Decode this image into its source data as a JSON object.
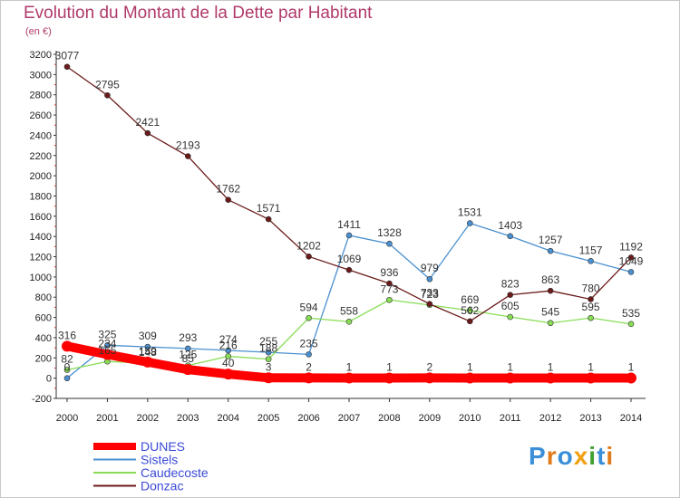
{
  "chart_data": {
    "type": "line",
    "title": "Evolution du Montant de la Dette par Habitant",
    "subtitle": "(en €)",
    "x": [
      "2000",
      "2001",
      "2002",
      "2003",
      "2004",
      "2005",
      "2006",
      "2007",
      "2008",
      "2009",
      "2010",
      "2011",
      "2012",
      "2013",
      "2014"
    ],
    "y_ticks": [
      "-200",
      "0",
      "200",
      "400",
      "600",
      "800",
      "1000",
      "1200",
      "1400",
      "1600",
      "1800",
      "2000",
      "2200",
      "2400",
      "2600",
      "2800",
      "3000",
      "3200"
    ],
    "ylim": [
      -200,
      3200
    ],
    "grid": false,
    "legend_position": "bottom-left",
    "series": [
      {
        "name": "DUNES",
        "color": "#ff0000",
        "values": [
          316,
          234,
          159,
          85,
          40,
          3,
          2,
          1,
          1,
          2,
          1,
          1,
          1,
          1,
          1
        ],
        "labels": [
          "316",
          "234",
          "159",
          "85",
          "40",
          "3",
          "2",
          "1",
          "1",
          "2",
          "1",
          "1",
          "1",
          "1",
          "1"
        ]
      },
      {
        "name": "Sistels",
        "color": "#4a90d0",
        "values": [
          0,
          325,
          309,
          293,
          274,
          255,
          235,
          1411,
          1328,
          979,
          1531,
          1403,
          1257,
          1157,
          1049
        ],
        "labels": [
          "0",
          "325",
          "309",
          "293",
          "274",
          "255",
          "235",
          "1411",
          "1328",
          "979",
          "1531",
          "1403",
          "1257",
          "1157",
          "1049"
        ]
      },
      {
        "name": "Caudecoste",
        "color": "#88dd55",
        "values": [
          82,
          165,
          148,
          125,
          216,
          188,
          594,
          558,
          773,
          723,
          669,
          605,
          545,
          595,
          535
        ],
        "labels": [
          "82",
          "165",
          "148",
          "125",
          "216",
          "188",
          "594",
          "558",
          "773",
          "723",
          "669",
          "605",
          "545",
          "595",
          "535"
        ]
      },
      {
        "name": "Donzac",
        "color": "#6b1a1a",
        "values": [
          3077,
          2795,
          2421,
          2193,
          1762,
          1571,
          1202,
          1069,
          936,
          733,
          562,
          823,
          863,
          780,
          1192
        ],
        "labels": [
          "3077",
          "2795",
          "2421",
          "2193",
          "1762",
          "1571",
          "1202",
          "1069",
          "936",
          "733",
          "562",
          "823",
          "863",
          "780",
          "1192"
        ]
      }
    ]
  },
  "logo": {
    "letters": [
      "P",
      "r",
      "o",
      "x",
      "i",
      "t",
      "i"
    ],
    "colors": [
      "#3a8fd8",
      "#e07a1a",
      "#3a8fd8",
      "#f0a010",
      "#40a030",
      "#3a8fd8",
      "#e07a1a"
    ]
  }
}
